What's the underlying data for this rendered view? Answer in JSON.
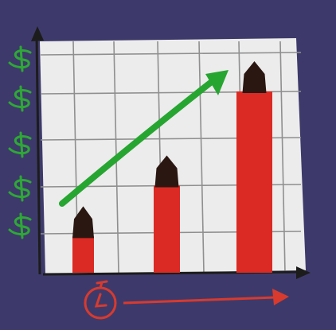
{
  "colors": {
    "background": "#3d3a6b",
    "paper": "#ececec",
    "grid": "#8f8f8f",
    "axis": "#1c1c1c",
    "bar": "#db2a23",
    "trend_arrow": "#27a531",
    "dollar": "#2ea836",
    "clock": "#d83a2e",
    "pawn": "#2a1712"
  },
  "icons": {
    "y_axis_symbols": "dollar-sign-icon",
    "x_axis_symbol": "stopwatch-icon",
    "bar_top_markers": "pawn-icon",
    "trend": "upward-arrow-icon"
  },
  "chart_data": {
    "type": "bar",
    "categories": [
      "",
      "",
      ""
    ],
    "values": [
      1,
      2,
      4
    ],
    "title": "",
    "xlabel": "",
    "ylabel": "",
    "ylim": [
      0,
      4.5
    ],
    "grid": true,
    "y_axis_symbol_count": 5,
    "trend": "up"
  }
}
